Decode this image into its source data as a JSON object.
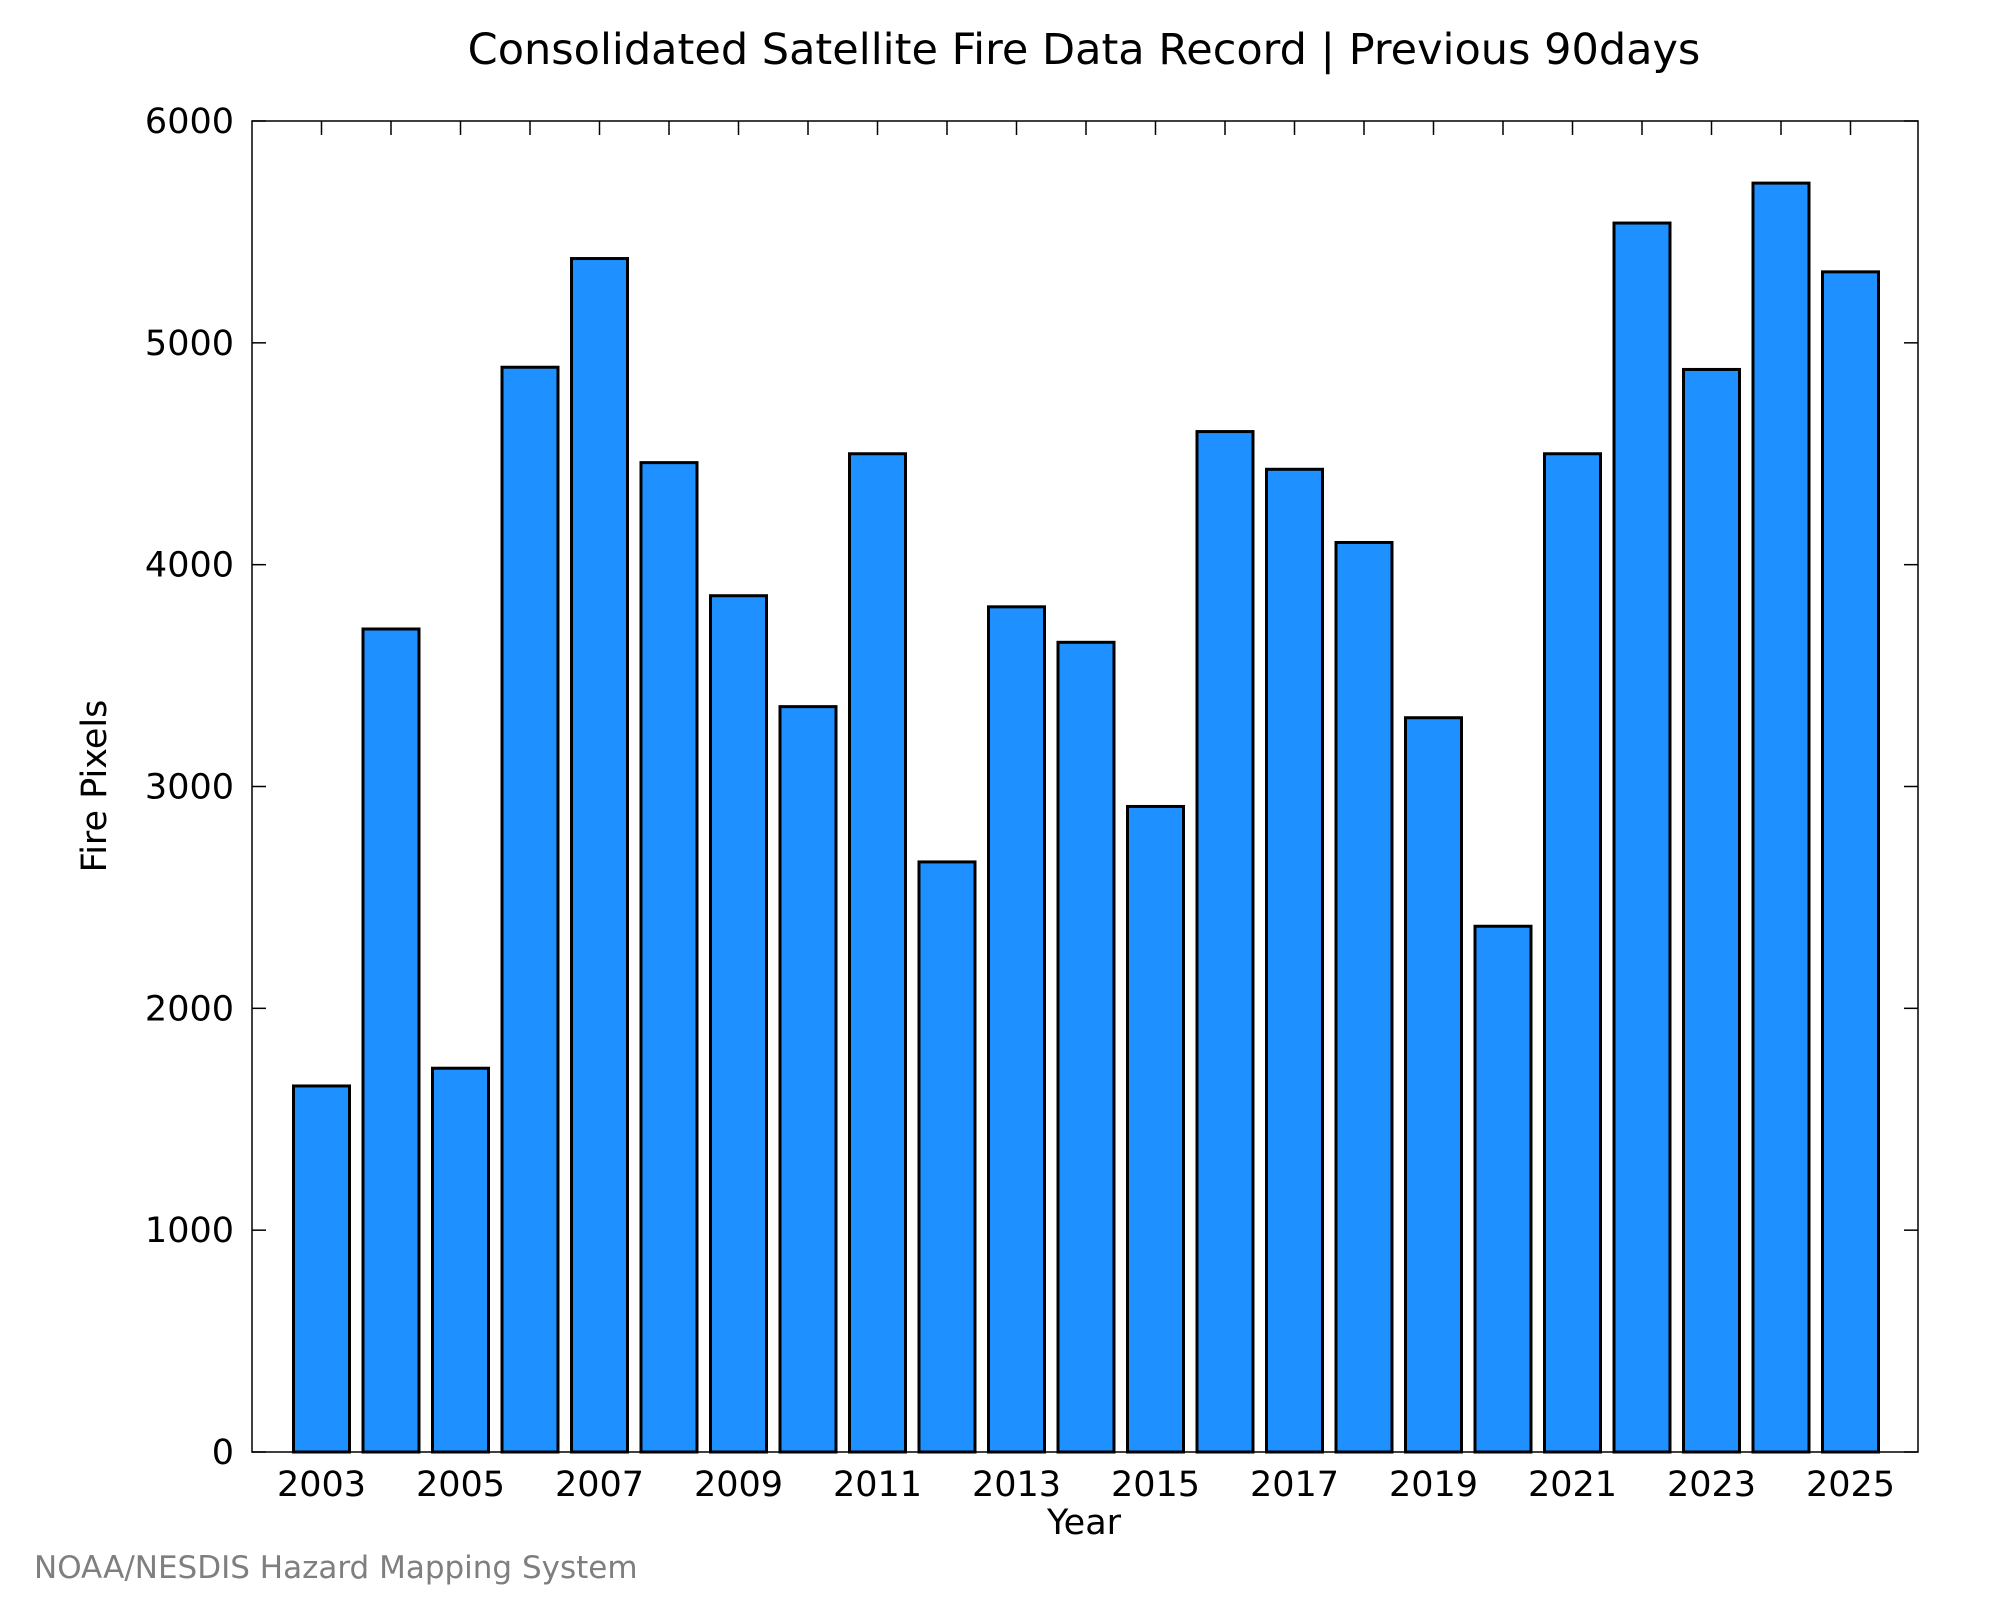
{
  "chart_data": {
    "type": "bar",
    "title": "Consolidated Satellite Fire Data Record | Previous 90days",
    "xlabel": "Year",
    "ylabel": "Fire Pixels",
    "categories": [
      "2003",
      "2004",
      "2005",
      "2006",
      "2007",
      "2008",
      "2009",
      "2010",
      "2011",
      "2012",
      "2013",
      "2014",
      "2015",
      "2016",
      "2017",
      "2018",
      "2019",
      "2020",
      "2021",
      "2022",
      "2023",
      "2024",
      "2025"
    ],
    "values": [
      1650,
      3710,
      1730,
      4890,
      5380,
      4460,
      3860,
      3360,
      4500,
      2660,
      3810,
      3650,
      2910,
      4600,
      4430,
      4100,
      3310,
      2370,
      4500,
      5540,
      4880,
      5720,
      5320
    ],
    "x_tick_labels": [
      "2003",
      "2005",
      "2007",
      "2009",
      "2011",
      "2013",
      "2015",
      "2017",
      "2019",
      "2021",
      "2023",
      "2025"
    ],
    "y_tick_labels": [
      "0",
      "1000",
      "2000",
      "3000",
      "4000",
      "5000",
      "6000"
    ],
    "ylim": [
      0,
      6000
    ],
    "grid": false,
    "legend": "none",
    "colors": {
      "bar_fill": "#1e90ff",
      "bar_stroke": "#000000",
      "credit_text": "#7f7f7f"
    },
    "credit": "NOAA/NESDIS Hazard Mapping System"
  }
}
